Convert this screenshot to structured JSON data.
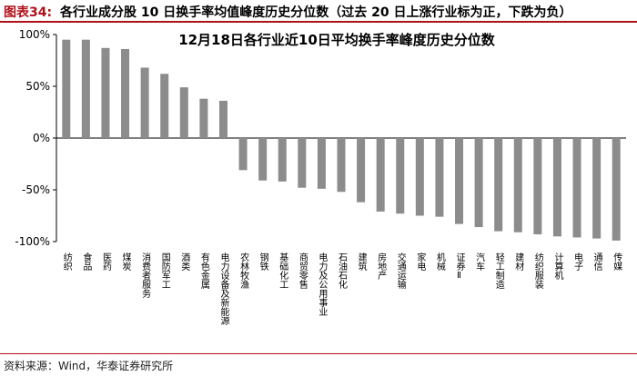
{
  "header": {
    "figure_label": "图表34:",
    "figure_title": "各行业成分股 10 日换手率均值峰度历史分位数（过去 20 日上涨行业标为正，下跌为负）"
  },
  "footer": {
    "source": "资料来源：Wind，华泰证券研究所"
  },
  "colors": {
    "bar": "#8c8c8c",
    "accent_red": "#b0101a",
    "axis": "#000000"
  },
  "chart_data": {
    "type": "bar",
    "title": "12月18日各行业近10日平均换手率峰度历史分位数",
    "xlabel": "",
    "ylabel": "",
    "ylim": [
      -100,
      100
    ],
    "yticks": [
      100,
      50,
      0,
      -50,
      -100
    ],
    "ytick_labels": [
      "100%",
      "50%",
      "0%",
      "-50%",
      "-100%"
    ],
    "grid": false,
    "categories": [
      "纺织",
      "食品",
      "医药",
      "煤炭",
      "消费者服务",
      "国防军工",
      "酒类",
      "有色金属",
      "电力设备及新能源",
      "农林牧渔",
      "钢铁",
      "基础化工",
      "商贸零售",
      "电力及公用事业",
      "石油石化",
      "建筑",
      "房地产",
      "交通运输",
      "家电",
      "机械",
      "证券Ⅱ",
      "汽车",
      "轻工制造",
      "建材",
      "纺织服装",
      "计算机",
      "电子",
      "通信",
      "传媒"
    ],
    "values": [
      95,
      95,
      87,
      86,
      68,
      62,
      49,
      38,
      36,
      -31,
      -41,
      -42,
      -48,
      -49,
      -52,
      -62,
      -71,
      -73,
      -75,
      -76,
      -83,
      -86,
      -90,
      -91,
      -93,
      -95,
      -96,
      -97,
      -99
    ]
  }
}
